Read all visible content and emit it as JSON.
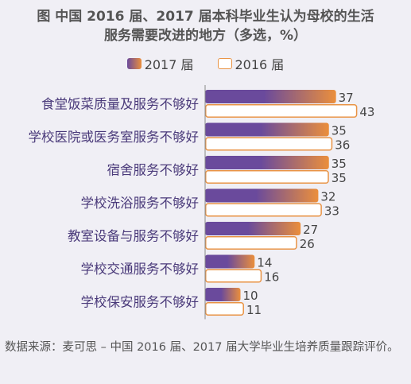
{
  "chart_data": {
    "type": "bar",
    "orientation": "horizontal",
    "title_line1": "图  中国 2016 届、2017 届本科毕业生认为母校的生活",
    "title_line2": "服务需要改进的地方（多选，%）",
    "categories": [
      "食堂饭菜质量及服务不够好",
      "学校医院或医务室服务不够好",
      "宿舍服务不够好",
      "学校洗浴服务不够好",
      "教室设备与服务不够好",
      "学校交通服务不够好",
      "学校保安服务不够好"
    ],
    "series": [
      {
        "name": "2017 届",
        "values": [
          37,
          35,
          35,
          32,
          27,
          14,
          10
        ]
      },
      {
        "name": "2016 届",
        "values": [
          43,
          36,
          35,
          33,
          26,
          16,
          11
        ]
      }
    ],
    "xlim": [
      0,
      50
    ],
    "legend_position": "top",
    "grid": false,
    "colors": {
      "s2017_start": "#6a4a9c",
      "s2017_end": "#eb8f3c",
      "s2016_border": "#e99344",
      "axis": "#888888",
      "label_text": "#4a3a7a"
    }
  },
  "source": "数据来源：麦可思 – 中国 2016 届、2017 届大学毕业生培养质量跟踪评价。"
}
